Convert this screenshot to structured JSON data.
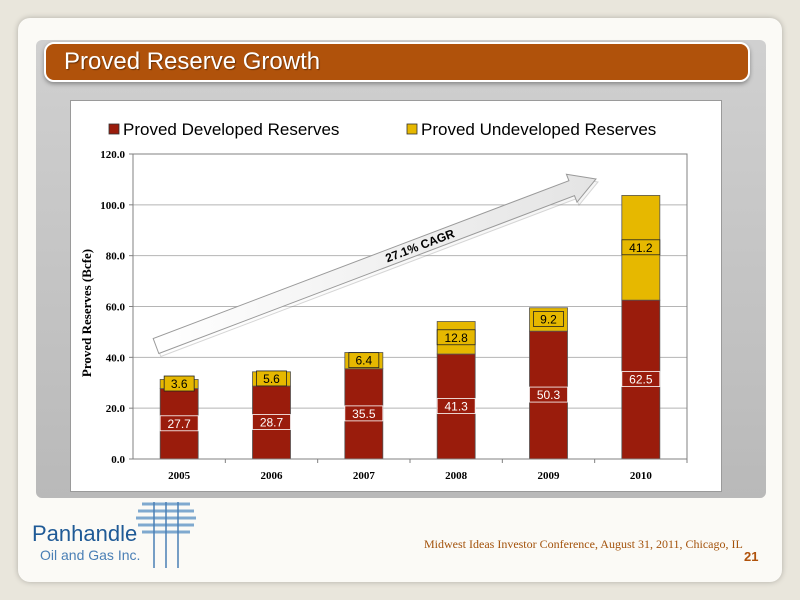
{
  "slide": {
    "title": "Proved Reserve Growth",
    "footer": "Midwest Ideas Investor Conference, August 31, 2011, Chicago, IL",
    "page_number": "21",
    "logo": {
      "line1": "Panhandle",
      "line2": "Oil and Gas Inc."
    }
  },
  "chart_data": {
    "type": "bar",
    "stacked": true,
    "categories": [
      "2005",
      "2006",
      "2007",
      "2008",
      "2009",
      "2010"
    ],
    "series": [
      {
        "name": "Proved Developed Reserves",
        "color": "#9a1c0c",
        "values": [
          27.7,
          28.7,
          35.5,
          41.3,
          50.3,
          62.5
        ],
        "labels": [
          "27.7",
          "28.7",
          "35.5",
          "41.3",
          "50.3",
          "62.5"
        ]
      },
      {
        "name": "Proved Undeveloped Reserves",
        "color": "#e6b800",
        "values": [
          3.6,
          5.6,
          6.4,
          12.8,
          9.2,
          41.2
        ],
        "labels": [
          "3.6",
          "5.6",
          "6.4",
          "12.8",
          "9.2",
          "41.2"
        ]
      }
    ],
    "ylabel": "Proved Reserves (Bcfe)",
    "ylim": [
      0,
      120
    ],
    "yticks": [
      "0.0",
      "20.0",
      "40.0",
      "60.0",
      "80.0",
      "100.0",
      "120.0"
    ],
    "grid": true,
    "legend_position": "top",
    "annotation": "27.1% CAGR"
  }
}
